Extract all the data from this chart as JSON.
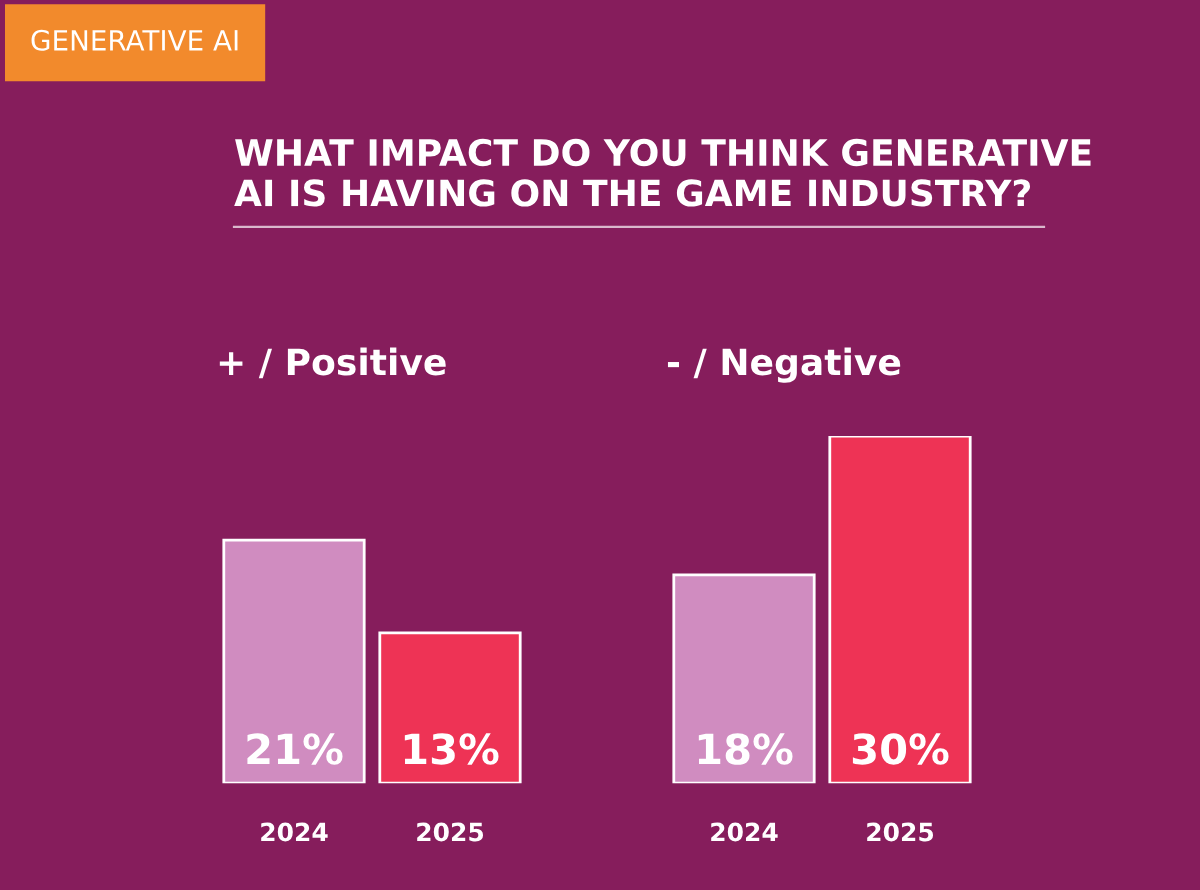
{
  "chart_data": [
    {
      "type": "bar",
      "title": "+ / Positive",
      "categories": [
        "2024",
        "2025"
      ],
      "values": [
        21,
        13
      ],
      "colors": [
        "#d08cc0",
        "#ee3355"
      ],
      "value_labels": [
        "21%",
        "13%"
      ],
      "annotations": [
        "GENERATIVE AI",
        "WHAT IMPACT DO YOU THINK GENERATIVE\nAI IS HAVING ON THE GAME INDUSTRY?"
      ]
    },
    {
      "type": "bar",
      "title": "- / Negative",
      "categories": [
        "2024",
        "2025"
      ],
      "values": [
        18,
        30
      ],
      "colors": [
        "#d08cc0",
        "#ee3355"
      ],
      "value_labels": [
        "18%",
        "30%"
      ]
    }
  ]
}
